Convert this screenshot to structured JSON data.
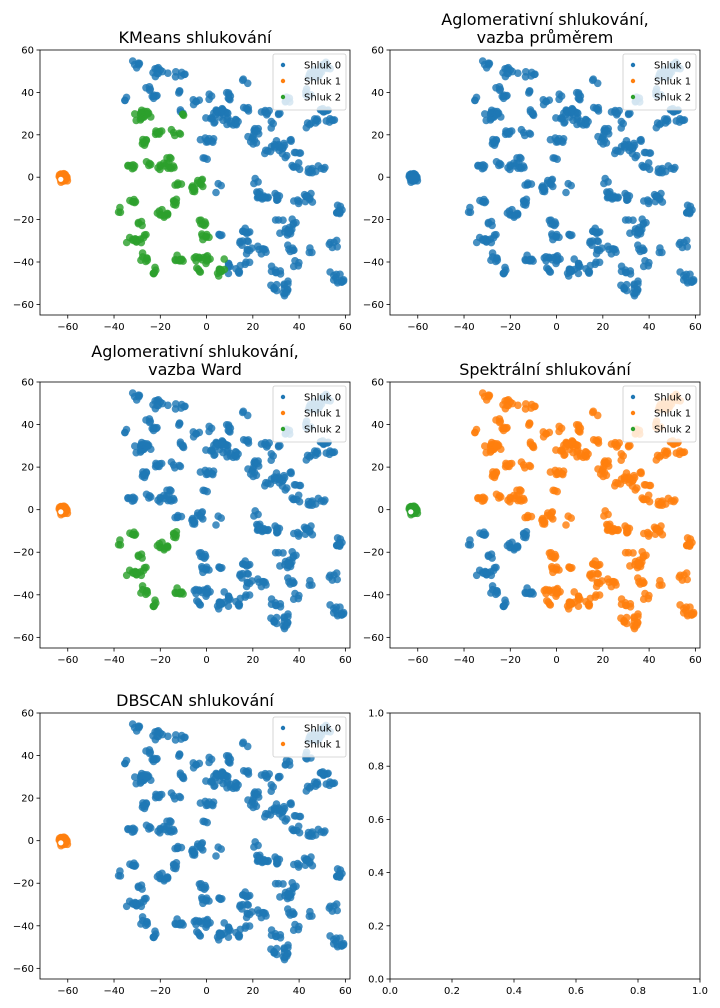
{
  "chart_data": [
    {
      "type": "scatter",
      "title": [
        "KMeans shlukování"
      ],
      "xlim": [
        -72,
        62
      ],
      "ylim": [
        -65,
        60
      ],
      "xticks": [
        -60,
        -40,
        -20,
        0,
        20,
        40,
        60
      ],
      "yticks": [
        -60,
        -40,
        -20,
        0,
        20,
        40,
        60
      ],
      "legend": "top-right",
      "series": [
        {
          "name": "Shluk 0",
          "color": "#1f77b4",
          "region": "right"
        },
        {
          "name": "Shluk 1",
          "color": "#ff7f0e",
          "region": "island"
        },
        {
          "name": "Shluk 2",
          "color": "#2ca02c",
          "region": "left"
        }
      ]
    },
    {
      "type": "scatter",
      "title": [
        "Aglomerativní shlukování,",
        "vazba průměrem"
      ],
      "xlim": [
        -72,
        62
      ],
      "ylim": [
        -65,
        60
      ],
      "xticks": [
        -60,
        -40,
        -20,
        0,
        20,
        40,
        60
      ],
      "yticks": [
        -60,
        -40,
        -20,
        0,
        20,
        40,
        60
      ],
      "legend": "top-right",
      "series": [
        {
          "name": "Shluk 0",
          "color": "#1f77b4",
          "region": "all"
        },
        {
          "name": "Shluk 1",
          "color": "#ff7f0e",
          "region": "none"
        },
        {
          "name": "Shluk 2",
          "color": "#2ca02c",
          "region": "none"
        }
      ]
    },
    {
      "type": "scatter",
      "title": [
        "Aglomerativní shlukování,",
        "vazba Ward"
      ],
      "xlim": [
        -72,
        62
      ],
      "ylim": [
        -65,
        60
      ],
      "xticks": [
        -60,
        -40,
        -20,
        0,
        20,
        40,
        60
      ],
      "yticks": [
        -60,
        -40,
        -20,
        0,
        20,
        40,
        60
      ],
      "legend": "top-right",
      "series": [
        {
          "name": "Shluk 0",
          "color": "#1f77b4",
          "region": "main-minus-lowerleft"
        },
        {
          "name": "Shluk 1",
          "color": "#ff7f0e",
          "region": "island"
        },
        {
          "name": "Shluk 2",
          "color": "#2ca02c",
          "region": "lowerleft"
        }
      ]
    },
    {
      "type": "scatter",
      "title": [
        "Spektrální shlukování"
      ],
      "xlim": [
        -72,
        62
      ],
      "ylim": [
        -65,
        60
      ],
      "xticks": [
        -60,
        -40,
        -20,
        0,
        20,
        40,
        60
      ],
      "yticks": [
        -60,
        -40,
        -20,
        0,
        20,
        40,
        60
      ],
      "legend": "top-right",
      "series": [
        {
          "name": "Shluk 0",
          "color": "#1f77b4",
          "region": "lowerleft"
        },
        {
          "name": "Shluk 1",
          "color": "#ff7f0e",
          "region": "main-minus-lowerleft"
        },
        {
          "name": "Shluk 2",
          "color": "#2ca02c",
          "region": "island"
        }
      ]
    },
    {
      "type": "scatter",
      "title": [
        "DBSCAN shlukování"
      ],
      "xlim": [
        -72,
        62
      ],
      "ylim": [
        -65,
        60
      ],
      "xticks": [
        -60,
        -40,
        -20,
        0,
        20,
        40,
        60
      ],
      "yticks": [
        -60,
        -40,
        -20,
        0,
        20,
        40,
        60
      ],
      "legend": "top-right",
      "series": [
        {
          "name": "Shluk 0",
          "color": "#1f77b4",
          "region": "main"
        },
        {
          "name": "Shluk 1",
          "color": "#ff7f0e",
          "region": "island"
        }
      ]
    },
    {
      "type": "scatter",
      "title": [],
      "xlim": [
        0,
        1
      ],
      "ylim": [
        0,
        1
      ],
      "xticks": [
        0.0,
        0.2,
        0.4,
        0.6,
        0.8,
        1.0
      ],
      "yticks": [
        0.0,
        0.2,
        0.4,
        0.6,
        0.8,
        1.0
      ],
      "tick_format": "one-decimal",
      "empty": true,
      "series": []
    }
  ]
}
